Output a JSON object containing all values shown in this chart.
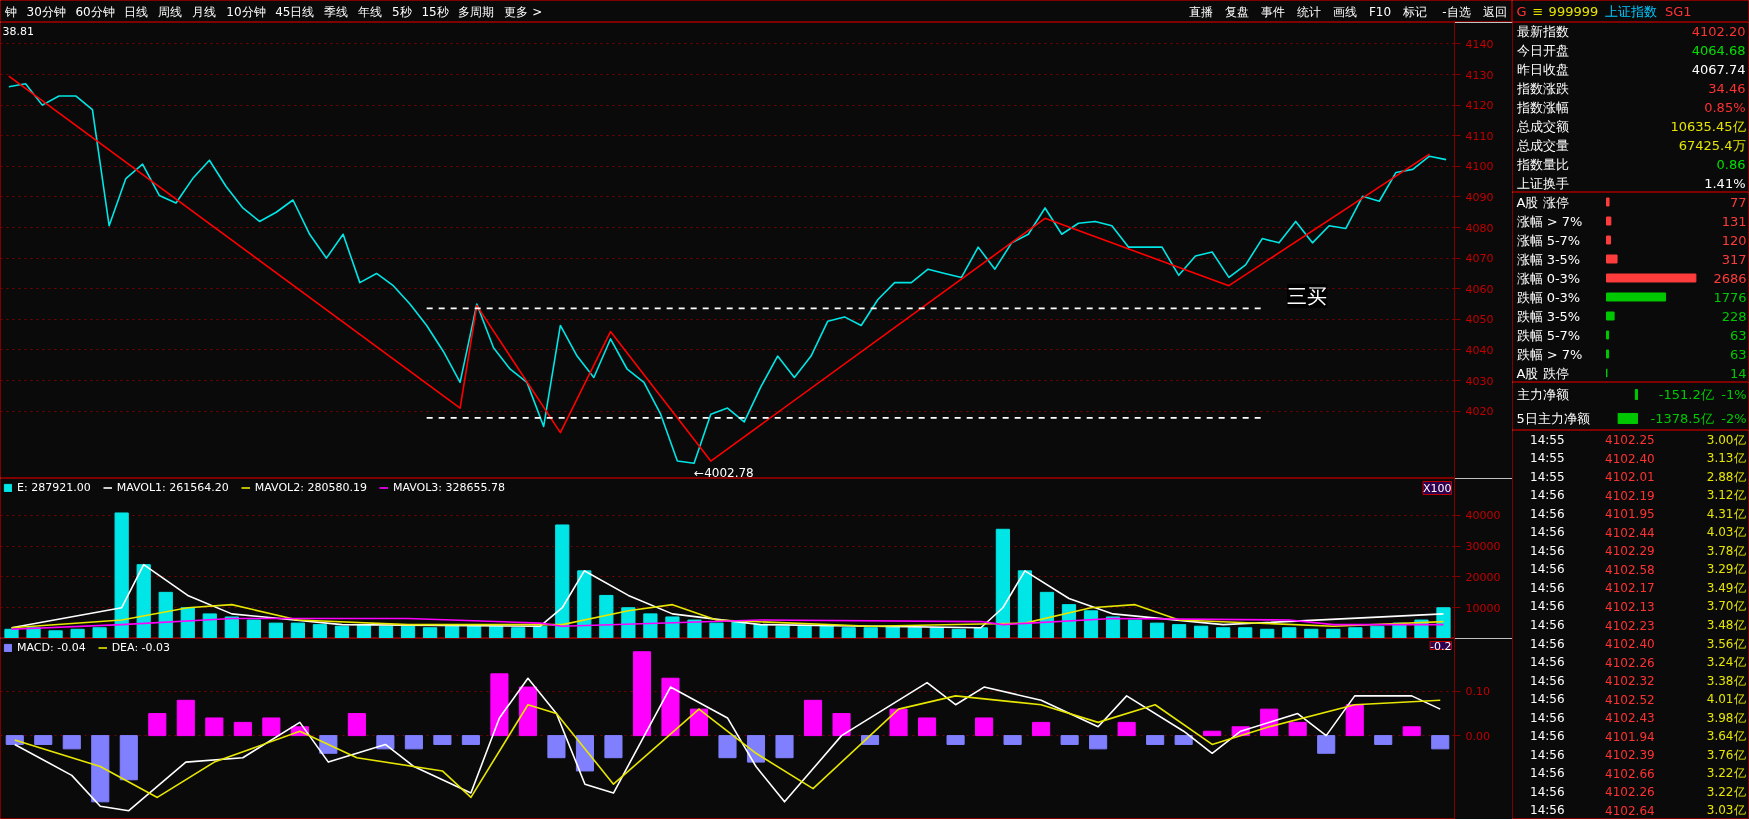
{
  "chart_data": [
    {
      "type": "other",
      "categories": [
        "钟",
        "30分钟",
        "60分钟",
        "日线",
        "周线",
        "月线",
        "10分钟",
        "45日线",
        "季线",
        "年线",
        "5秒",
        "15秒",
        "多周期",
        "更多 >"
      ],
      "annotations": [
        "直播",
        "复盘",
        "事件",
        "统计",
        "画线",
        "F10",
        "标记",
        "-自选",
        "返回"
      ]
    },
    {
      "type": "other",
      "annotations": [
        "G",
        "≡",
        "999999",
        "上证指数",
        "SG1"
      ],
      "colors": [
        "#ff3232",
        "#e6e600",
        "#e6e600",
        "#00c8ff",
        "#ff3232"
      ]
    },
    {
      "type": "line",
      "ylim": [
        3998,
        4147
      ],
      "yticks": [
        4020,
        4030,
        4040,
        4050,
        4060,
        4070,
        4080,
        4090,
        4100,
        4110,
        4120,
        4130,
        4140
      ],
      "tick_labels": "y",
      "grid": "y",
      "categories": [
        null,
        null,
        null,
        null,
        null,
        null,
        null,
        null,
        null,
        null,
        null,
        null,
        null,
        null,
        null,
        null,
        null,
        null,
        null,
        null,
        null,
        null,
        null,
        null,
        null,
        null,
        null,
        null,
        null,
        null,
        null,
        null,
        null,
        null,
        null,
        null,
        null,
        null,
        null,
        null,
        null,
        null,
        null,
        null,
        null,
        null,
        null,
        null,
        null,
        null,
        null,
        null,
        null,
        null,
        null,
        null,
        null,
        null,
        null,
        null,
        null,
        null,
        null,
        null,
        null,
        null,
        null,
        null,
        null,
        null,
        null,
        null,
        null,
        null,
        null,
        null,
        null,
        null,
        null,
        null,
        null,
        null,
        null,
        null,
        null,
        null,
        null
      ],
      "series": [
        {
          "color": "#00e5e5",
          "values": [
            4126,
            4127,
            4120,
            4123,
            4123,
            4118.5,
            4080.6,
            4096,
            4100.7,
            4090.5,
            4088,
            4096,
            4102,
            4093.4,
            4086.4,
            4082,
            4085,
            4089,
            4077.8,
            4070,
            4077.8,
            4062,
            4065,
            4061,
            4055,
            4048,
            4039.5,
            4029.4,
            4055,
            4040.7,
            4033.7,
            4029.4,
            4015,
            4048,
            4038,
            4031,
            4043.6,
            4033.7,
            4029.4,
            4019,
            4003.7,
            4003,
            4019,
            4021,
            4016.5,
            4028,
            4038,
            4031,
            4038,
            4049.4,
            4050.8,
            4048,
            4056.5,
            4062,
            4062,
            4066.4,
            4065,
            4063.7,
            4073.6,
            4066.4,
            4075,
            4077.8,
            4086.4,
            4077.8,
            4081.4,
            4082,
            4080.6,
            4073.6,
            4073.6,
            4073.6,
            4064.4,
            4070.7,
            4072,
            4063.7,
            4067.8,
            4076.4,
            4075,
            4082,
            4075,
            4080.6,
            4079.7,
            4090.2,
            4088.6,
            4098,
            4099,
            4103.3,
            4102.2
          ]
        },
        {
          "type": "line",
          "color": "#ff0000",
          "values": [
            4129.5,
            null,
            null,
            null,
            null,
            null,
            null,
            null,
            null,
            null,
            null,
            null,
            null,
            null,
            null,
            null,
            null,
            null,
            null,
            null,
            null,
            null,
            null,
            null,
            null,
            null,
            null,
            4021,
            4054.5,
            null,
            null,
            null,
            null,
            4013,
            null,
            null,
            4046,
            null,
            null,
            null,
            null,
            null,
            4003.7,
            null,
            null,
            null,
            null,
            null,
            null,
            null,
            null,
            null,
            null,
            null,
            null,
            null,
            null,
            null,
            null,
            null,
            null,
            null,
            4083,
            null,
            null,
            null,
            null,
            null,
            null,
            null,
            null,
            null,
            null,
            4061,
            null,
            null,
            null,
            null,
            null,
            null,
            null,
            null,
            null,
            null,
            null,
            4104,
            null
          ]
        },
        {
          "type": "line",
          "color": "#ffffff",
          "line_style": "dashed",
          "values": [
            null,
            null,
            null,
            null,
            null,
            null,
            null,
            null,
            null,
            null,
            null,
            null,
            null,
            null,
            null,
            null,
            null,
            null,
            null,
            null,
            null,
            null,
            null,
            null,
            null,
            4053.6,
            null,
            null,
            null,
            null,
            null,
            null,
            null,
            null,
            null,
            null,
            null,
            null,
            null,
            null,
            null,
            null,
            null,
            null,
            null,
            null,
            null,
            null,
            null,
            null,
            null,
            null,
            null,
            null,
            null,
            null,
            null,
            null,
            null,
            null,
            null,
            null,
            null,
            null,
            null,
            null,
            null,
            null,
            null,
            null,
            null,
            null,
            null,
            null,
            null,
            4053.6,
            null,
            null,
            null,
            null,
            null,
            null,
            null,
            null,
            null,
            null,
            null
          ]
        },
        {
          "type": "line",
          "color": "#ffffff",
          "line_style": "dashed",
          "values": [
            null,
            null,
            null,
            null,
            null,
            null,
            null,
            null,
            null,
            null,
            null,
            null,
            null,
            null,
            null,
            null,
            null,
            null,
            null,
            null,
            null,
            null,
            null,
            null,
            null,
            4017.8,
            null,
            null,
            null,
            null,
            null,
            null,
            null,
            null,
            null,
            null,
            null,
            null,
            null,
            null,
            null,
            null,
            null,
            null,
            null,
            null,
            null,
            null,
            null,
            null,
            null,
            null,
            null,
            null,
            null,
            null,
            null,
            null,
            null,
            null,
            null,
            null,
            null,
            null,
            null,
            null,
            null,
            null,
            null,
            null,
            null,
            null,
            null,
            null,
            null,
            4017.8,
            null,
            null,
            null,
            null,
            null,
            null,
            null,
            null,
            null,
            null,
            null
          ]
        }
      ],
      "annotations": [
        "38.81",
        "←4002.78",
        "三买"
      ]
    },
    {
      "type": "bar",
      "ylim": [
        0,
        52000
      ],
      "yticks": [
        10000,
        20000,
        30000,
        40000
      ],
      "tick_labels": "y",
      "grid": "y",
      "legend": "top left",
      "annotations": [
        "X100"
      ],
      "categories": [
        null,
        null,
        null,
        null,
        null,
        null,
        null,
        null,
        null,
        null,
        null,
        null,
        null,
        null,
        null,
        null,
        null,
        null,
        null,
        null,
        null,
        null,
        null,
        null,
        null,
        null,
        null,
        null,
        null,
        null,
        null,
        null,
        null,
        null,
        null,
        null,
        null,
        null,
        null,
        null,
        null,
        null,
        null,
        null,
        null,
        null,
        null,
        null,
        null,
        null,
        null,
        null,
        null,
        null,
        null,
        null,
        null,
        null,
        null,
        null,
        null,
        null,
        null,
        null,
        null,
        null
      ],
      "series": [
        {
          "name": "E: 287921.00",
          "color": "#00e5e5",
          "values": [
            3000,
            3500,
            2500,
            3000,
            3500,
            40800,
            24000,
            15000,
            10000,
            8000,
            7000,
            6000,
            5000,
            5000,
            4500,
            4000,
            4500,
            4000,
            4000,
            3500,
            4000,
            4500,
            4000,
            3500,
            4000,
            36900,
            22000,
            14000,
            10000,
            8000,
            7000,
            6000,
            5000,
            5500,
            4500,
            4000,
            4000,
            4500,
            3500,
            3500,
            4000,
            3500,
            3500,
            3000,
            3500,
            35500,
            22000,
            15000,
            11000,
            9000,
            7000,
            6000,
            5000,
            4500,
            4000,
            3500,
            3500,
            3000,
            3500,
            3000,
            3000,
            3500,
            4000,
            5000,
            6000,
            10000
          ]
        },
        {
          "name": "MAVOL1: 261564.20",
          "type": "line",
          "color": "#ffffff",
          "values": [
            3500,
            null,
            null,
            null,
            null,
            10000,
            24000,
            null,
            14000,
            null,
            8000,
            null,
            null,
            null,
            null,
            4500,
            null,
            null,
            null,
            null,
            null,
            null,
            null,
            null,
            4000,
            10000,
            22000,
            null,
            14000,
            null,
            8000,
            null,
            null,
            null,
            4500,
            null,
            null,
            null,
            null,
            null,
            null,
            null,
            null,
            null,
            3500,
            10000,
            22000,
            null,
            13000,
            null,
            8000,
            null,
            null,
            null,
            null,
            4500,
            null,
            null,
            null,
            null,
            null,
            null,
            null,
            null,
            null,
            8000
          ]
        },
        {
          "name": "MAVOL2: 280580.19",
          "type": "line",
          "color": "#e6e600",
          "values": [
            3500,
            null,
            null,
            null,
            null,
            6000,
            null,
            null,
            10000,
            null,
            11000,
            null,
            null,
            6000,
            null,
            null,
            null,
            null,
            4500,
            null,
            null,
            null,
            null,
            null,
            null,
            4500,
            null,
            null,
            9000,
            null,
            11000,
            null,
            6000,
            null,
            null,
            null,
            null,
            null,
            null,
            4000,
            null,
            null,
            null,
            null,
            null,
            null,
            5000,
            null,
            null,
            10000,
            null,
            11000,
            null,
            6000,
            null,
            null,
            null,
            null,
            null,
            null,
            4000,
            null,
            null,
            null,
            null,
            5500
          ]
        },
        {
          "name": "MAVOL3: 328655.78",
          "type": "line",
          "color": "#ff00ff",
          "values": [
            3000,
            null,
            null,
            null,
            null,
            4500,
            null,
            null,
            null,
            null,
            6500,
            null,
            null,
            null,
            null,
            null,
            null,
            null,
            6500,
            null,
            null,
            null,
            null,
            null,
            5000,
            4000,
            null,
            null,
            null,
            null,
            null,
            null,
            null,
            null,
            6000,
            null,
            null,
            null,
            null,
            null,
            null,
            null,
            null,
            null,
            5500,
            4500,
            null,
            null,
            null,
            null,
            6500,
            null,
            null,
            null,
            null,
            null,
            null,
            null,
            6000,
            null,
            4500,
            null,
            null,
            null,
            null,
            4500
          ]
        }
      ]
    },
    {
      "type": "bar",
      "ylim": [
        -0.19,
        0.22
      ],
      "yticks": [
        {
          "value": 0,
          "label": "0.00"
        },
        {
          "value": 0.1,
          "label": "0.10"
        }
      ],
      "tick_labels": "y",
      "grid": "y",
      "legend": "top left",
      "annotations": [
        "-0.2"
      ],
      "categories": [
        null,
        null,
        null,
        null,
        null,
        null,
        null,
        null,
        null,
        null,
        null,
        null,
        null,
        null,
        null,
        null,
        null,
        null,
        null,
        null,
        null,
        null,
        null,
        null,
        null,
        null,
        null,
        null,
        null,
        null,
        null,
        null,
        null,
        null,
        null,
        null,
        null,
        null,
        null,
        null,
        null,
        null,
        null,
        null,
        null,
        null,
        null,
        null,
        null,
        null,
        null
      ],
      "series": [
        {
          "name": "MACD: -0.04",
          "type": "bar",
          "values": [
            -0.02,
            -0.02,
            -0.03,
            -0.15,
            -0.1,
            0.05,
            0.08,
            0.04,
            0.03,
            0.04,
            0.02,
            -0.04,
            0.05,
            -0.03,
            -0.03,
            -0.02,
            -0.02,
            0.14,
            0.11,
            -0.05,
            -0.08,
            -0.05,
            0.19,
            0.13,
            0.06,
            -0.05,
            -0.06,
            -0.05,
            0.08,
            0.05,
            -0.02,
            0.06,
            0.04,
            -0.02,
            0.04,
            -0.02,
            0.03,
            -0.02,
            -0.03,
            0.03,
            -0.02,
            -0.02,
            0.01,
            0.02,
            0.06,
            0.03,
            -0.04,
            0.07,
            -0.02,
            0.02,
            -0.03
          ],
          "colors": [
            "#8080ff",
            "#8080ff",
            "#8080ff",
            "#8080ff",
            "#8080ff",
            "#ff00ff",
            "#ff00ff",
            "#ff00ff",
            "#ff00ff",
            "#ff00ff",
            "#ff00ff",
            "#8080ff",
            "#ff00ff",
            "#8080ff",
            "#8080ff",
            "#8080ff",
            "#8080ff",
            "#ff00ff",
            "#ff00ff",
            "#8080ff",
            "#8080ff",
            "#8080ff",
            "#ff00ff",
            "#ff00ff",
            "#ff00ff",
            "#8080ff",
            "#8080ff",
            "#8080ff",
            "#ff00ff",
            "#ff00ff",
            "#8080ff",
            "#ff00ff",
            "#ff00ff",
            "#8080ff",
            "#ff00ff",
            "#8080ff",
            "#ff00ff",
            "#8080ff",
            "#8080ff",
            "#ff00ff",
            "#8080ff",
            "#8080ff",
            "#ff00ff",
            "#ff00ff",
            "#ff00ff",
            "#ff00ff",
            "#8080ff",
            "#ff00ff",
            "#8080ff",
            "#ff00ff",
            "#8080ff"
          ]
        },
        {
          "type": "line",
          "color": "#ffffff",
          "values": [
            -0.02,
            null,
            -0.09,
            -0.16,
            -0.17,
            null,
            -0.06,
            null,
            -0.05,
            null,
            0.03,
            -0.06,
            null,
            -0.02,
            -0.07,
            null,
            -0.13,
            0.04,
            0.13,
            0.05,
            -0.11,
            -0.13,
            null,
            0.11,
            null,
            0.04,
            -0.07,
            -0.15,
            null,
            0.0,
            null,
            null,
            0.12,
            0.07,
            0.11,
            null,
            0.08,
            null,
            0.02,
            0.09,
            null,
            0.01,
            -0.04,
            0.01,
            null,
            0.05,
            0.0,
            0.09,
            null,
            0.09,
            0.06
          ]
        },
        {
          "name": "DEA: -0.03",
          "type": "line",
          "color": "#e6e600",
          "values": [
            -0.01,
            null,
            null,
            -0.07,
            null,
            -0.14,
            null,
            -0.06,
            null,
            null,
            0.01,
            null,
            -0.05,
            null,
            null,
            -0.08,
            -0.14,
            null,
            0.07,
            0.05,
            null,
            -0.11,
            null,
            null,
            0.06,
            null,
            -0.04,
            null,
            -0.12,
            null,
            null,
            0.06,
            null,
            0.09,
            null,
            null,
            0.07,
            null,
            0.03,
            null,
            0.07,
            null,
            -0.02,
            null,
            0.02,
            null,
            null,
            0.07,
            null,
            null,
            0.08
          ]
        }
      ]
    },
    {
      "type": "other",
      "categories": [
        "最新指数",
        "今日开盘",
        "昨日收盘",
        "指数涨跌",
        "指数涨幅",
        "总成交额",
        "总成交量",
        "指数量比",
        "上证换手"
      ],
      "value_labels": [
        "4102.20",
        "4064.68",
        "4067.74",
        "34.46",
        "0.85%",
        "10635.45亿",
        "67425.4万",
        "0.86",
        "1.41%"
      ],
      "colors": [
        "#ff3232",
        "#00e000",
        "#ffffff",
        "#ff3232",
        "#ff3232",
        "#e6e600",
        "#e6e600",
        "#00e000",
        "#ffffff"
      ]
    },
    {
      "type": "bar",
      "orientation": "horizontal",
      "categories": [
        "A股 涨停",
        "涨幅 > 7%",
        "涨幅 5-7%",
        "涨幅 3-5%",
        "涨幅 0-3%",
        "跌幅 0-3%",
        "跌幅 3-5%",
        "跌幅 5-7%",
        "跌幅 > 7%",
        "A股 跌停"
      ],
      "values": [
        77,
        131,
        120,
        317,
        2686,
        1776,
        228,
        63,
        63,
        14
      ],
      "colors": [
        "#ff3c3c",
        "#ff3c3c",
        "#ff3c3c",
        "#ff3c3c",
        "#ff3c3c",
        "#00c800",
        "#00c800",
        "#00c800",
        "#00c800",
        "#00c800"
      ],
      "tick_labels": "y",
      "data_labels": true
    },
    {
      "type": "bar",
      "orientation": "horizontal",
      "categories": [
        "主力净额",
        "5日主力净额"
      ],
      "values": [
        -151.2,
        -1378.5
      ],
      "value_labels": [
        "-151.2亿",
        "-1378.5亿"
      ],
      "color": "#00c800",
      "tick_labels": "y",
      "annotations": [
        "-1%",
        "-2%"
      ]
    },
    {
      "type": "other",
      "colors": [
        "#ffffff",
        "#ff3232",
        "#e6e600"
      ],
      "annotations": [
        "14:55",
        "4102.25",
        "3.00亿",
        "14:55",
        "4102.40",
        "3.13亿",
        "14:55",
        "4102.01",
        "2.88亿",
        "14:56",
        "4102.19",
        "3.12亿",
        "14:56",
        "4101.95",
        "4.31亿",
        "14:56",
        "4102.44",
        "4.03亿",
        "14:56",
        "4102.29",
        "3.78亿",
        "14:56",
        "4102.58",
        "3.29亿",
        "14:56",
        "4102.17",
        "3.49亿",
        "14:56",
        "4102.13",
        "3.70亿",
        "14:56",
        "4102.23",
        "3.48亿",
        "14:56",
        "4102.40",
        "3.56亿",
        "14:56",
        "4102.26",
        "3.24亿",
        "14:56",
        "4102.32",
        "3.38亿",
        "14:56",
        "4102.52",
        "4.01亿",
        "14:56",
        "4102.43",
        "3.98亿",
        "14:56",
        "4101.94",
        "3.64亿",
        "14:56",
        "4102.39",
        "3.76亿",
        "14:56",
        "4102.66",
        "3.22亿",
        "14:56",
        "4102.26",
        "3.22亿",
        "14:56",
        "4102.64",
        "3.03亿"
      ]
    }
  ]
}
